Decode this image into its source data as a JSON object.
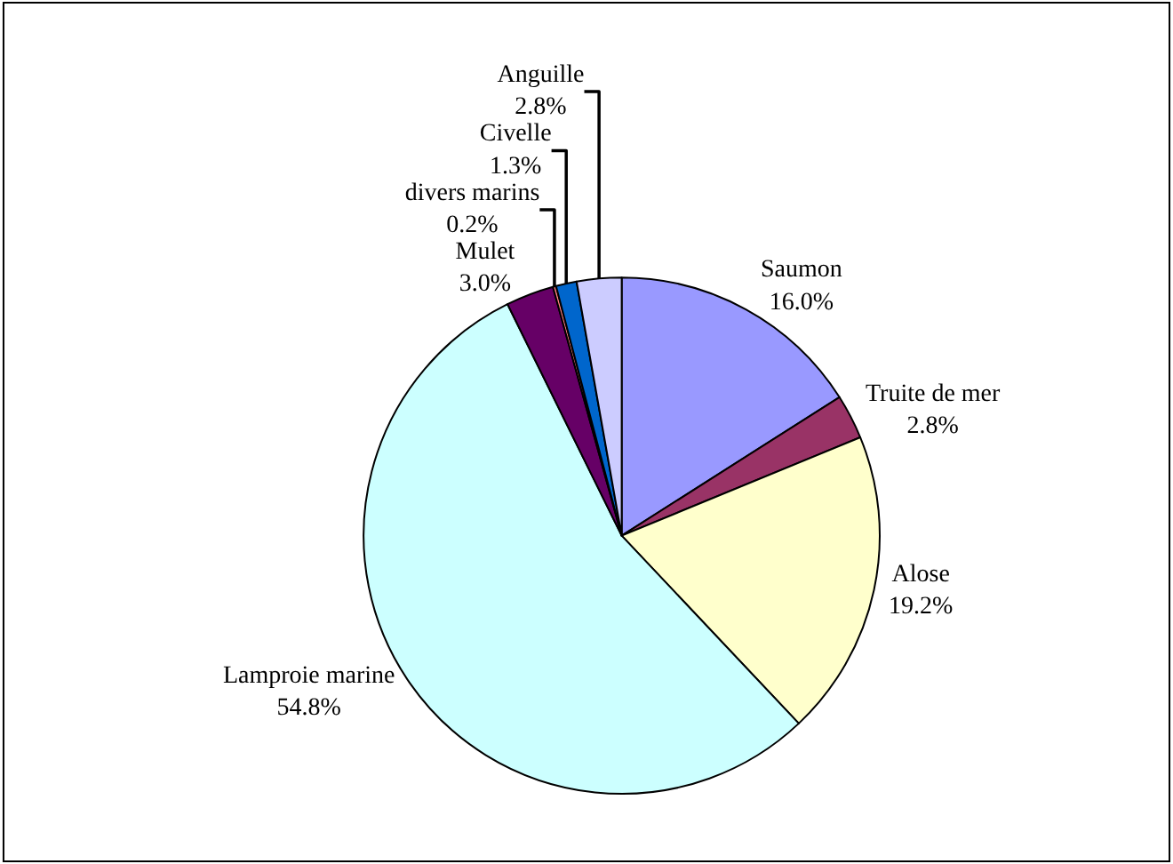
{
  "chart_data": {
    "type": "pie",
    "categories": [
      "Saumon",
      "Truite de mer",
      "Alose",
      "Lamproie marine",
      "Mulet",
      "divers marins",
      "Civelle",
      "Anguille"
    ],
    "values": [
      16.0,
      2.8,
      19.2,
      54.8,
      3.0,
      0.2,
      1.3,
      2.8
    ],
    "value_labels": [
      "16.0%",
      "2.8%",
      "19.2%",
      "54.8%",
      "3.0%",
      "0.2%",
      "1.3%",
      "2.8%"
    ],
    "colors": [
      "#9999ff",
      "#993366",
      "#ffffcc",
      "#ccffff",
      "#660066",
      "#ff8080",
      "#0066cc",
      "#ccccff"
    ],
    "legend": false
  }
}
